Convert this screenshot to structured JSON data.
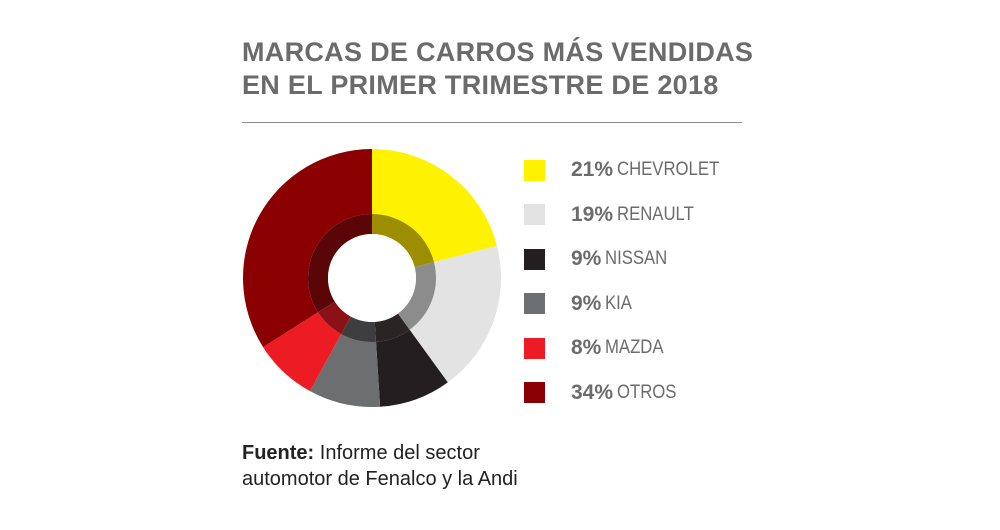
{
  "title_line1": "MARCAS DE CARROS MÁS VENDIDAS",
  "title_line2": "EN EL PRIMER TRIMESTRE DE 2018",
  "source_label": "Fuente:",
  "source_line1": "Informe del sector",
  "source_line2": "automotor de Fenalco y la Andi",
  "chart_data": {
    "type": "pie",
    "title": "MARCAS DE CARROS MÁS VENDIDAS EN EL PRIMER TRIMESTRE DE 2018",
    "unit": "%",
    "style": "donut",
    "legend_position": "right",
    "categories": [
      "CHEVROLET",
      "RENAULT",
      "NISSAN",
      "KIA",
      "MAZDA",
      "OTROS"
    ],
    "values": [
      21,
      19,
      9,
      9,
      8,
      34
    ],
    "labels": [
      "21%",
      "19%",
      "9%",
      "9%",
      "8%",
      "34%"
    ],
    "colors": [
      "#fff200",
      "#e3e3e3",
      "#231f20",
      "#6d6e70",
      "#ed1c24",
      "#8b0000"
    ],
    "inner_ring_colors": [
      "#9c8e00",
      "#8c8c8c",
      "#2b2425",
      "#3e3e40",
      "#8a1216",
      "#5a0506"
    ]
  }
}
